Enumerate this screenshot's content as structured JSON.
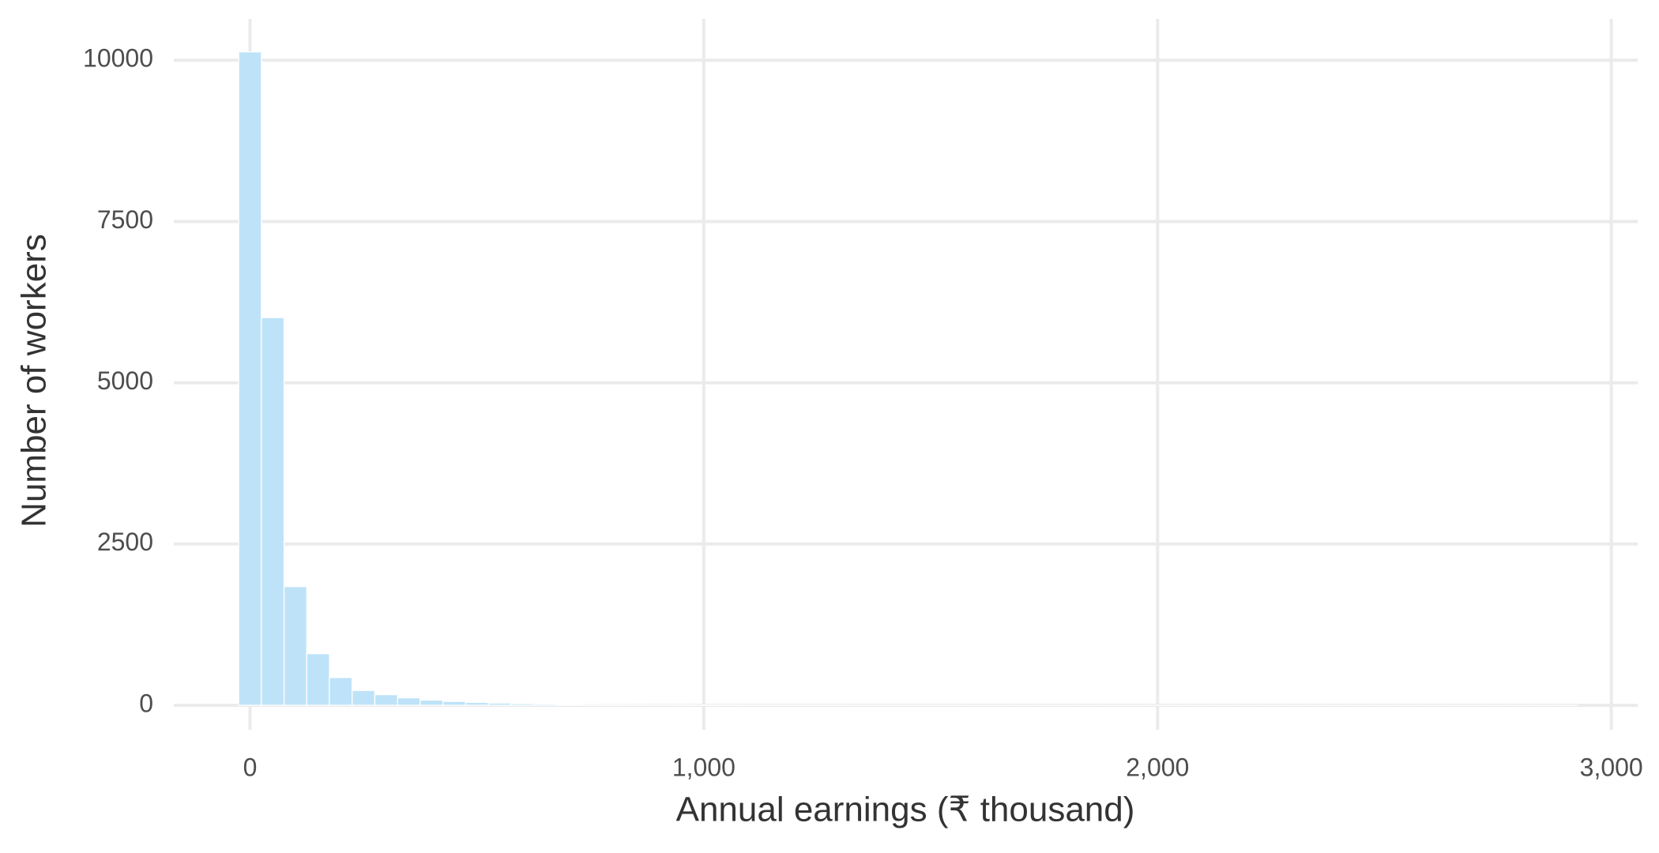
{
  "chart_data": {
    "type": "histogram",
    "x_label": "Annual earnings (₹ thousand)",
    "y_label": "Number of workers",
    "bins": [
      -25,
      25,
      75,
      125,
      175,
      225,
      275,
      325,
      375,
      425,
      475,
      525,
      575,
      625,
      675,
      725,
      775,
      825,
      875,
      925,
      975,
      1025,
      1075,
      1125,
      1175,
      1225,
      1275,
      1325,
      1375,
      1425,
      1475,
      1525,
      1575,
      1625,
      1675,
      1725,
      1775,
      1825,
      1875,
      1925,
      1975,
      2025,
      2075,
      2125,
      2175,
      2225,
      2275,
      2325,
      2375,
      2425,
      2475,
      2525,
      2575,
      2625,
      2675,
      2725,
      2775,
      2825,
      2875,
      2925
    ],
    "values": [
      10130,
      6010,
      1840,
      800,
      430,
      230,
      165,
      115,
      80,
      60,
      45,
      35,
      25,
      20,
      15,
      12,
      10,
      8,
      7,
      6,
      5,
      5,
      4,
      4,
      3,
      3,
      3,
      2,
      2,
      2,
      2,
      2,
      1,
      1,
      1,
      1,
      1,
      1,
      1,
      1,
      1,
      1,
      1,
      1,
      1,
      1,
      1,
      1,
      1,
      1,
      1,
      1,
      1,
      1,
      1,
      1,
      1,
      1,
      1
    ],
    "color": "#bee3f8",
    "xlim": [
      -168,
      3058
    ],
    "ylim": [
      -380,
      10640
    ],
    "xticks": [
      0,
      {
        "value": 1000,
        "label": "1,000"
      },
      {
        "value": 2000,
        "label": "2,000"
      },
      {
        "value": 3000,
        "label": "3,000"
      }
    ],
    "yticks": [
      0,
      2500,
      5000,
      7500,
      10000
    ],
    "grid": true
  }
}
